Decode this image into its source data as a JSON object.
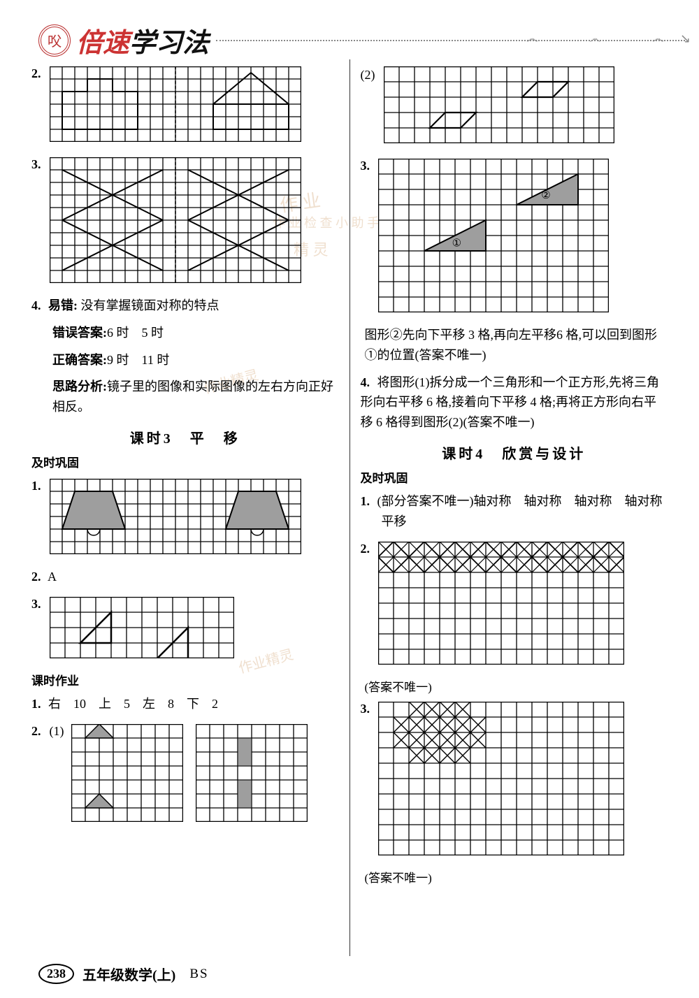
{
  "header": {
    "brand_red": "倍速",
    "brand_black": "学习法"
  },
  "left": {
    "q2": {
      "num": "2.",
      "grid": {
        "cols": 20,
        "rows": 6,
        "cell": 18
      }
    },
    "q3": {
      "num": "3.",
      "grid": {
        "cols": 20,
        "rows": 10,
        "cell": 18
      }
    },
    "q4": {
      "num": "4.",
      "label": "易错:",
      "text": "没有掌握镜面对称的特点",
      "wrong_label": "错误答案:",
      "wrong": "6 时　5 时",
      "correct_label": "正确答案:",
      "correct": "9 时　11 时",
      "analysis_label": "思路分析:",
      "analysis": "镜子里的图像和实际图像的左右方向正好相反。"
    },
    "lesson3_title": "课时3　平　移",
    "section_a": "及时巩固",
    "l3_q1": {
      "num": "1.",
      "grid": {
        "cols": 20,
        "rows": 6,
        "cell": 18
      }
    },
    "l3_q2": {
      "num": "2.",
      "answer": "A"
    },
    "l3_q3": {
      "num": "3.",
      "grid": {
        "cols": 12,
        "rows": 4,
        "cell": 22
      }
    },
    "hw_title": "课时作业",
    "hw_q1": {
      "num": "1.",
      "text": "右　10　上　5　左　8　下　2"
    },
    "hw_q2": {
      "num": "2.",
      "sub1": "(1)",
      "gridA": {
        "cols": 8,
        "rows": 7,
        "cell": 20
      },
      "gridB": {
        "cols": 8,
        "rows": 7,
        "cell": 20
      }
    }
  },
  "right": {
    "q2_2": {
      "label": "(2)",
      "grid": {
        "cols": 15,
        "rows": 5,
        "cell": 22
      }
    },
    "r_q3": {
      "num": "3.",
      "grid": {
        "cols": 15,
        "rows": 10,
        "cell": 22
      },
      "circ1": "①",
      "circ2": "②"
    },
    "r_q3_text": "图形②先向下平移 3 格,再向左平移6 格,可以回到图形①的位置(答案不唯一)",
    "r_q4": {
      "num": "4.",
      "text": "将图形(1)拆分成一个三角形和一个正方形,先将三角形向右平移 6 格,接着向下平移 4 格;再将正方形向右平移 6 格得到图形(2)(答案不唯一)"
    },
    "lesson4_title": "课时4　欣赏与设计",
    "section_a": "及时巩固",
    "l4_q1": {
      "num": "1.",
      "text": "(部分答案不唯一)轴对称　轴对称　轴对称　轴对称",
      "line2": "平移"
    },
    "l4_q2": {
      "num": "2.",
      "grid": {
        "cols": 16,
        "rows": 8,
        "cell": 22
      },
      "note": "(答案不唯一)"
    },
    "l4_q3": {
      "num": "3.",
      "grid": {
        "cols": 16,
        "rows": 10,
        "cell": 22
      },
      "note": "(答案不唯一)"
    }
  },
  "footer": {
    "page": "238",
    "title": "五年级数学(上)",
    "edition": "BS"
  },
  "colors": {
    "grid": "#000000",
    "fill": "#9e9e9e",
    "dash": "#555555"
  }
}
